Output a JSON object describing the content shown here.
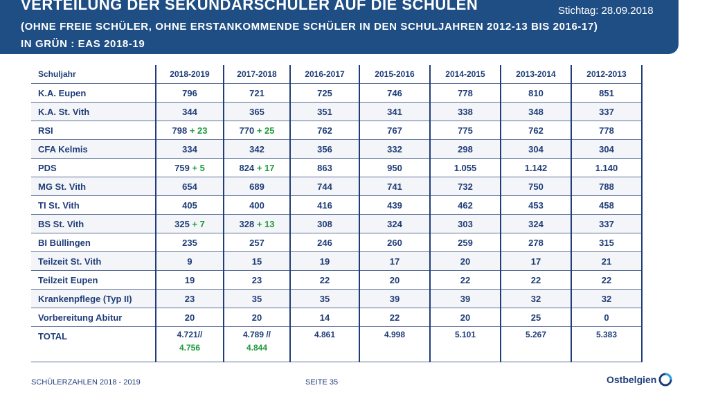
{
  "header": {
    "title": "VERTEILUNG DER SEKUNDARSCHÜLER AUF DIE SCHULEN",
    "stichtag": "Stichtag: 28.09.2018",
    "subtitle1": "(OHNE FREIE SCHÜLER, OHNE ERSTANKOMMENDE SCHÜLER IN DEN SCHULJAHREN 2012-13 BIS 2016-17)",
    "subtitle2": "IN GRÜN : EAS 2018-19"
  },
  "table": {
    "headers": [
      "Schuljahr",
      "2018-2019",
      "2017-2018",
      "2016-2017",
      "2015-2016",
      "2014-2015",
      "2013-2014",
      "2012-2013"
    ],
    "rows": [
      {
        "label": "K.A. Eupen",
        "v1": "796",
        "v2": "721",
        "v3": "725",
        "v4": "746",
        "v5": "778",
        "v6": "810",
        "v7": "851"
      },
      {
        "label": "K.A. St. Vith",
        "v1": "344",
        "v2": "365",
        "v3": "351",
        "v4": "341",
        "v5": "338",
        "v6": "348",
        "v7": "337"
      },
      {
        "label": "RSI",
        "v1": "798",
        "e1": "+ 23",
        "v2": "770",
        "e2": "+ 25",
        "v3": "762",
        "v4": "767",
        "v5": "775",
        "v6": "762",
        "v7": "778"
      },
      {
        "label": "CFA Kelmis",
        "v1": "334",
        "v2": "342",
        "v3": "356",
        "v4": "332",
        "v5": "298",
        "v6": "304",
        "v7": "304"
      },
      {
        "label": "PDS",
        "v1": "759",
        "e1": "+ 5",
        "v2": "824",
        "e2": "+ 17",
        "v3": "863",
        "v4": "950",
        "v5": "1.055",
        "v6": "1.142",
        "v7": "1.140"
      },
      {
        "label": "MG St. Vith",
        "v1": "654",
        "v2": "689",
        "v3": "744",
        "v4": "741",
        "v5": "732",
        "v6": "750",
        "v7": "788"
      },
      {
        "label": "TI St. Vith",
        "v1": "405",
        "v2": "400",
        "v3": "416",
        "v4": "439",
        "v5": "462",
        "v6": "453",
        "v7": "458"
      },
      {
        "label": "BS St. Vith",
        "v1": "325",
        "e1": "+ 7",
        "v2": "328",
        "e2": "+ 13",
        "v3": "308",
        "v4": "324",
        "v5": "303",
        "v6": "324",
        "v7": "337"
      },
      {
        "label": "BI Büllingen",
        "v1": "235",
        "v2": "257",
        "v3": "246",
        "v4": "260",
        "v5": "259",
        "v6": "278",
        "v7": "315"
      },
      {
        "label": "Teilzeit St. Vith",
        "v1": "9",
        "v2": "15",
        "v3": "19",
        "v4": "17",
        "v5": "20",
        "v6": "17",
        "v7": "21"
      },
      {
        "label": "Teilzeit Eupen",
        "v1": "19",
        "v2": "23",
        "v3": "22",
        "v4": "20",
        "v5": "22",
        "v6": "22",
        "v7": "22"
      },
      {
        "label": "Krankenpflege (Typ II)",
        "v1": "23",
        "v2": "35",
        "v3": "35",
        "v4": "39",
        "v5": "39",
        "v6": "32",
        "v7": "32"
      },
      {
        "label": "Vorbereitung Abitur",
        "v1": "20",
        "v2": "20",
        "v3": "14",
        "v4": "22",
        "v5": "20",
        "v6": "25",
        "v7": "0"
      }
    ],
    "total": {
      "label": "TOTAL",
      "c1_a": "4.721//",
      "c1_b": "4.756",
      "c2_a": "4.789 //",
      "c2_b": "4.844",
      "c3": "4.861",
      "c4": "4.998",
      "c5": "5.101",
      "c6": "5.267",
      "c7": "5.383"
    }
  },
  "footer": {
    "left": "SCHÜLERZAHLEN 2018 - 2019",
    "page": "SEITE 35",
    "logo": "Ostbelgien"
  },
  "colors": {
    "banner": "#1f4e84",
    "text": "#1f3d78",
    "green": "#1e9a3a"
  }
}
